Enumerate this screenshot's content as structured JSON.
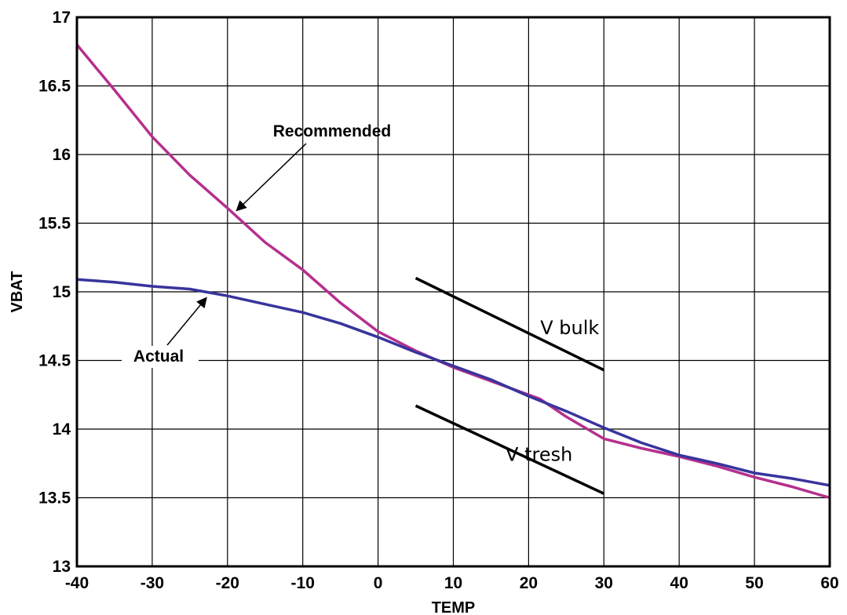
{
  "chart_data": {
    "type": "line",
    "xlabel": "TEMP",
    "ylabel": "VBAT",
    "xlim": [
      -40,
      60
    ],
    "ylim": [
      13,
      17
    ],
    "x_ticks": [
      "-40",
      "-30",
      "-20",
      "-10",
      "0",
      "10",
      "20",
      "30",
      "40",
      "50",
      "60"
    ],
    "y_ticks": [
      "13",
      "13.5",
      "14",
      "14.5",
      "15",
      "15.5",
      "16",
      "16.5",
      "17"
    ],
    "grid": true,
    "series": [
      {
        "name": "Recommended",
        "color": "#b5308e",
        "x": [
          -40,
          -35,
          -30,
          -25,
          -20,
          -15,
          -10,
          -5,
          0,
          5,
          10,
          15,
          20,
          21.5,
          25,
          30,
          35,
          40,
          45,
          50,
          55,
          60
        ],
        "y": [
          16.8,
          16.47,
          16.13,
          15.85,
          15.61,
          15.36,
          15.16,
          14.92,
          14.71,
          14.57,
          14.45,
          14.35,
          14.25,
          14.22,
          14.09,
          13.93,
          13.86,
          13.8,
          13.73,
          13.65,
          13.58,
          13.5
        ]
      },
      {
        "name": "Actual",
        "color": "#38349c",
        "x": [
          -40,
          -35,
          -30,
          -25,
          -20,
          -15,
          -10,
          -5,
          0,
          5,
          10,
          15,
          20,
          25,
          30,
          35,
          40,
          45,
          50,
          55,
          60
        ],
        "y": [
          15.09,
          15.07,
          15.04,
          15.02,
          14.97,
          14.91,
          14.85,
          14.77,
          14.67,
          14.56,
          14.46,
          14.36,
          14.24,
          14.13,
          14.01,
          13.9,
          13.81,
          13.75,
          13.68,
          13.64,
          13.59
        ]
      }
    ],
    "threshold_lines": [
      {
        "label": "V bulk",
        "x": [
          5,
          30
        ],
        "y": [
          15.1,
          14.43
        ]
      },
      {
        "label": "V tresh",
        "x": [
          5,
          30
        ],
        "y": [
          14.17,
          13.53
        ]
      }
    ],
    "annotations": [
      {
        "text": "Recommended",
        "points_to": [
          -19,
          15.58
        ]
      },
      {
        "text": "Actual",
        "points_to": [
          -23,
          14.98
        ]
      }
    ]
  }
}
